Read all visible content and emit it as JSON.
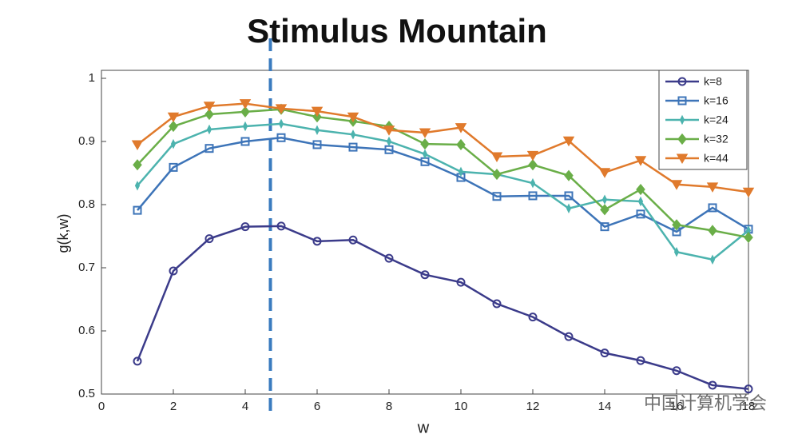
{
  "chart_data": {
    "type": "line",
    "title": "Stimulus Mountain",
    "x_label": "w",
    "y_label": "g(k,w)",
    "x": [
      1,
      2,
      3,
      4,
      5,
      6,
      7,
      8,
      9,
      10,
      11,
      12,
      13,
      14,
      15,
      16,
      17,
      18
    ],
    "xlim": [
      0,
      18
    ],
    "xticks": [
      0,
      2,
      4,
      6,
      8,
      10,
      12,
      14,
      16,
      18
    ],
    "ylim": [
      0.5,
      1
    ],
    "yticks": [
      0.5,
      0.6,
      0.7,
      0.8,
      0.9,
      1
    ],
    "legend": "upper right",
    "reference_line": {
      "x": 4.7,
      "color": "#3a7bbf"
    },
    "watermark": "中国计算机学会",
    "series": [
      {
        "name": "k=8",
        "color": "#3b3b8a",
        "marker": "circle",
        "values": [
          0.552,
          0.695,
          0.746,
          0.765,
          0.766,
          0.742,
          0.744,
          0.715,
          0.689,
          0.677,
          0.643,
          0.622,
          0.591,
          0.565,
          0.553,
          0.537,
          0.514,
          0.508
        ]
      },
      {
        "name": "k=16",
        "color": "#3d74b8",
        "marker": "square",
        "values": [
          0.791,
          0.859,
          0.889,
          0.9,
          0.906,
          0.895,
          0.891,
          0.887,
          0.868,
          0.843,
          0.813,
          0.814,
          0.814,
          0.765,
          0.785,
          0.757,
          0.795,
          0.761
        ]
      },
      {
        "name": "k=24",
        "color": "#4cb3ae",
        "marker": "star",
        "values": [
          0.83,
          0.896,
          0.919,
          0.924,
          0.928,
          0.918,
          0.911,
          0.9,
          0.88,
          0.852,
          0.848,
          0.834,
          0.794,
          0.808,
          0.805,
          0.725,
          0.713,
          0.759
        ]
      },
      {
        "name": "k=32",
        "color": "#6aae48",
        "marker": "diamond",
        "values": [
          0.863,
          0.924,
          0.943,
          0.947,
          0.951,
          0.939,
          0.932,
          0.924,
          0.896,
          0.895,
          0.848,
          0.863,
          0.846,
          0.792,
          0.824,
          0.768,
          0.759,
          0.748
        ]
      },
      {
        "name": "k=44",
        "color": "#e07a2c",
        "marker": "triangle-down",
        "values": [
          0.895,
          0.939,
          0.956,
          0.96,
          0.952,
          0.948,
          0.939,
          0.918,
          0.914,
          0.922,
          0.876,
          0.878,
          0.901,
          0.851,
          0.87,
          0.832,
          0.828,
          0.82
        ]
      }
    ]
  }
}
